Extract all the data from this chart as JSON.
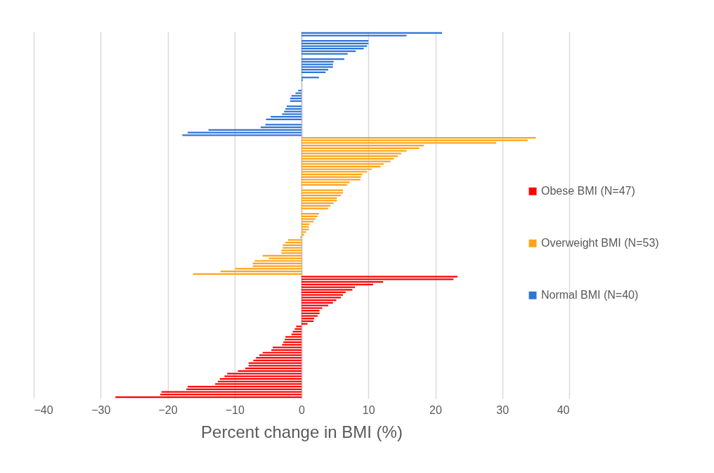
{
  "chart_data": {
    "type": "bar",
    "orientation": "horizontal",
    "xlabel": "Percent change in BMI (%)",
    "categories": [
      null,
      null,
      null,
      null,
      null,
      null,
      null,
      null,
      null,
      null,
      null,
      null,
      null,
      null,
      null,
      null,
      null,
      null,
      null,
      null,
      null,
      null,
      null,
      null,
      null,
      null,
      null,
      null,
      null,
      null,
      null,
      null,
      null,
      null,
      null,
      null,
      null,
      null,
      null,
      null,
      null,
      null,
      null,
      null,
      null,
      null,
      null,
      null,
      null,
      null,
      null,
      null,
      null,
      null,
      null,
      null,
      null,
      null,
      null,
      null,
      null,
      null,
      null,
      null,
      null,
      null,
      null,
      null,
      null,
      null,
      null,
      null,
      null,
      null,
      null,
      null,
      null,
      null,
      null,
      null,
      null,
      null,
      null,
      null,
      null,
      null,
      null,
      null,
      null,
      null,
      null,
      null,
      null,
      null,
      null,
      null,
      null,
      null,
      null,
      null,
      null,
      null,
      null,
      null,
      null,
      null,
      null,
      null,
      null,
      null,
      null,
      null,
      null,
      null,
      null,
      null,
      null,
      null,
      null,
      null,
      null,
      null,
      null,
      null,
      null,
      null,
      null,
      null,
      null,
      null,
      null,
      null,
      null,
      null,
      null,
      null,
      null,
      null,
      null,
      null
    ],
    "series": [
      {
        "name": "Obese BMI (N=47)",
        "color": "#ff0000",
        "values": [
          null,
          null,
          null,
          null,
          null,
          null,
          null,
          null,
          null,
          null,
          null,
          null,
          null,
          null,
          null,
          null,
          null,
          null,
          null,
          null,
          null,
          null,
          null,
          null,
          null,
          null,
          null,
          null,
          null,
          null,
          null,
          null,
          null,
          null,
          null,
          null,
          null,
          null,
          null,
          null,
          null,
          null,
          null,
          null,
          null,
          null,
          null,
          null,
          null,
          null,
          null,
          null,
          null,
          null,
          null,
          null,
          null,
          null,
          null,
          null,
          null,
          null,
          null,
          null,
          null,
          null,
          null,
          null,
          null,
          null,
          null,
          null,
          null,
          null,
          null,
          null,
          null,
          null,
          null,
          null,
          null,
          null,
          null,
          null,
          null,
          null,
          null,
          null,
          null,
          null,
          null,
          null,
          null,
          23.3,
          22.7,
          12.2,
          10.7,
          8.0,
          7.6,
          6.6,
          6.2,
          5.9,
          5.2,
          4.7,
          4.0,
          3.1,
          2.7,
          2.7,
          2.4,
          1.9,
          1.8,
          0.9,
          -0.8,
          -1.0,
          -1.3,
          -1.5,
          -2.4,
          -2.5,
          -2.7,
          -2.9,
          -4.3,
          -4.5,
          -5.8,
          -6.3,
          -6.8,
          -7.2,
          -7.9,
          -7.9,
          -8.4,
          -9.5,
          -11.1,
          -11.5,
          -12.2,
          -12.5,
          -12.9,
          -17.0,
          -17.2,
          -20.9,
          -21.1,
          -27.8
        ]
      },
      {
        "name": "Overweight BMI (N=53)",
        "color": "#ffa31a",
        "values": [
          null,
          null,
          null,
          null,
          null,
          null,
          null,
          null,
          null,
          null,
          null,
          null,
          null,
          null,
          null,
          null,
          null,
          null,
          null,
          null,
          null,
          null,
          null,
          null,
          null,
          null,
          null,
          null,
          null,
          null,
          null,
          null,
          null,
          null,
          null,
          null,
          null,
          null,
          null,
          null,
          35.0,
          33.8,
          29.1,
          18.3,
          17.6,
          15.7,
          14.9,
          14.4,
          13.8,
          13.3,
          12.3,
          11.8,
          10.5,
          9.8,
          9.1,
          8.9,
          8.8,
          7.2,
          6.8,
          0,
          6.2,
          6.2,
          5.9,
          5.3,
          5.3,
          4.8,
          4.3,
          4.0,
          0,
          2.6,
          2.4,
          2.1,
          1.8,
          1.2,
          1.1,
          1.1,
          0.7,
          0.4,
          -0.2,
          -2.0,
          -2.4,
          -2.8,
          -2.8,
          -3.0,
          -3.0,
          -5.8,
          -4.9,
          -7.0,
          -7.3,
          -7.3,
          -9.9,
          -12.1,
          -16.2,
          null,
          null,
          null,
          null,
          null,
          null,
          null,
          null,
          null,
          null,
          null,
          null,
          null,
          null,
          null,
          null,
          null,
          null,
          null,
          null,
          null,
          null,
          null,
          null,
          null,
          null,
          null,
          null,
          null,
          null,
          null,
          null,
          null,
          null,
          null,
          null,
          null,
          null,
          null,
          null,
          null,
          null,
          null,
          null,
          null,
          null,
          null
        ]
      },
      {
        "name": "Normal BMI (N=40)",
        "color": "#2e75d6",
        "values": [
          21.0,
          15.7,
          0,
          10.0,
          10.0,
          9.8,
          9.3,
          8.1,
          6.9,
          0,
          6.4,
          4.8,
          4.7,
          4.7,
          4.0,
          3.6,
          0,
          2.6,
          0.2,
          0,
          0,
          0,
          -0.5,
          -0.9,
          -1.5,
          -1.7,
          -1.7,
          0,
          -2.2,
          -2.4,
          -2.6,
          -2.9,
          -4.6,
          -5.3,
          0,
          -5.4,
          -6.1,
          -13.9,
          -17.0,
          -17.8,
          null,
          null,
          null,
          null,
          null,
          null,
          null,
          null,
          null,
          null,
          null,
          null,
          null,
          null,
          null,
          null,
          null,
          null,
          null,
          null,
          null,
          null,
          null,
          null,
          null,
          null,
          null,
          null,
          null,
          null,
          null,
          null,
          null,
          null,
          null,
          null,
          null,
          null,
          null,
          null,
          null,
          null,
          null,
          null,
          null,
          null,
          null,
          null,
          null,
          null,
          null,
          null,
          null,
          null,
          null,
          null,
          null,
          null,
          null,
          null,
          null,
          null,
          null,
          null,
          null,
          null,
          null,
          null,
          null,
          null,
          null,
          null,
          null,
          null,
          null,
          null,
          null,
          null,
          null,
          null,
          null,
          null,
          null,
          null,
          null,
          null,
          null,
          null,
          null,
          null,
          null,
          null,
          null,
          null,
          null,
          null,
          null,
          null,
          null,
          null
        ]
      }
    ],
    "xlim": [
      -40,
      40
    ],
    "xticks": [
      -40,
      -30,
      -20,
      -10,
      0,
      10,
      20,
      30,
      40
    ],
    "grid": "x",
    "legend": "right",
    "tick_labels": "x"
  }
}
